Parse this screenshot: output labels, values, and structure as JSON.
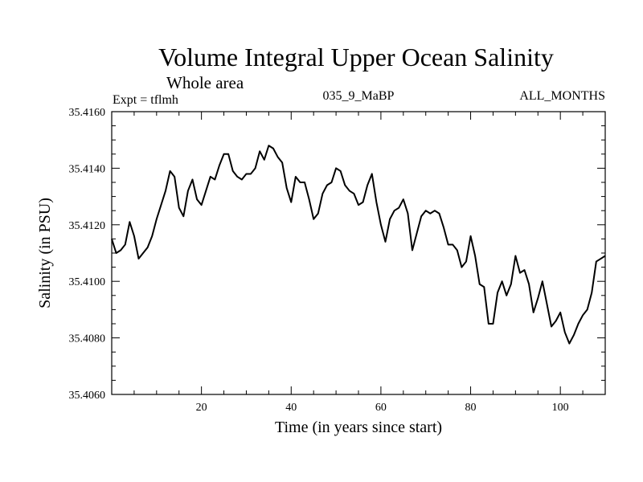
{
  "chart_data": {
    "type": "line",
    "title": "Volume Integral Upper Ocean Salinity",
    "subtitle": "Whole area",
    "annotations": {
      "left": "Expt = tflmh",
      "center": "035_9_MaBP",
      "right": "ALL_MONTHS"
    },
    "xlabel": "Time (in years since start)",
    "ylabel": "Salinity (in PSU)",
    "xlim": [
      0,
      110
    ],
    "ylim": [
      35.406,
      35.416
    ],
    "x_ticks": [
      20,
      40,
      60,
      80,
      100
    ],
    "x_tick_labels": [
      "20",
      "40",
      "60",
      "80",
      "100"
    ],
    "y_ticks": [
      35.406,
      35.408,
      35.41,
      35.412,
      35.414,
      35.416
    ],
    "y_tick_labels": [
      "35.4060",
      "35.4080",
      "35.4100",
      "35.4120",
      "35.4140",
      "35.4160"
    ],
    "grid": false,
    "series": [
      {
        "name": "salinity",
        "x": [
          0,
          1,
          2,
          3,
          4,
          5,
          6,
          7,
          8,
          9,
          10,
          11,
          12,
          13,
          14,
          15,
          16,
          17,
          18,
          19,
          20,
          21,
          22,
          23,
          24,
          25,
          26,
          27,
          28,
          29,
          30,
          31,
          32,
          33,
          34,
          35,
          36,
          37,
          38,
          39,
          40,
          41,
          42,
          43,
          44,
          45,
          46,
          47,
          48,
          49,
          50,
          51,
          52,
          53,
          54,
          55,
          56,
          57,
          58,
          59,
          60,
          61,
          62,
          63,
          64,
          65,
          66,
          67,
          68,
          69,
          70,
          71,
          72,
          73,
          74,
          75,
          76,
          77,
          78,
          79,
          80,
          81,
          82,
          83,
          84,
          85,
          86,
          87,
          88,
          89,
          90,
          91,
          92,
          93,
          94,
          95,
          96,
          97,
          98,
          99,
          100,
          101,
          102,
          103,
          104,
          105,
          106,
          107,
          108,
          109,
          110
        ],
        "values": [
          35.4115,
          35.411,
          35.4111,
          35.4113,
          35.4121,
          35.4116,
          35.4108,
          35.411,
          35.4112,
          35.4116,
          35.4122,
          35.4127,
          35.4132,
          35.4139,
          35.4137,
          35.4126,
          35.4123,
          35.4132,
          35.4136,
          35.4129,
          35.4127,
          35.4132,
          35.4137,
          35.4136,
          35.4141,
          35.4145,
          35.4145,
          35.4139,
          35.4137,
          35.4136,
          35.4138,
          35.4138,
          35.414,
          35.4146,
          35.4143,
          35.4148,
          35.4147,
          35.4144,
          35.4142,
          35.4133,
          35.4128,
          35.4137,
          35.4135,
          35.4135,
          35.4129,
          35.4122,
          35.4124,
          35.4131,
          35.4134,
          35.4135,
          35.414,
          35.4139,
          35.4134,
          35.4132,
          35.4131,
          35.4127,
          35.4128,
          35.4134,
          35.4138,
          35.4128,
          35.412,
          35.4114,
          35.4122,
          35.4125,
          35.4126,
          35.4129,
          35.4124,
          35.4111,
          35.4117,
          35.4123,
          35.4125,
          35.4124,
          35.4125,
          35.4124,
          35.4119,
          35.4113,
          35.4113,
          35.4111,
          35.4105,
          35.4107,
          35.4116,
          35.4109,
          35.4099,
          35.4098,
          35.4085,
          35.4085,
          35.4096,
          35.41,
          35.4095,
          35.4099,
          35.4109,
          35.4103,
          35.4104,
          35.4099,
          35.4089,
          35.4094,
          35.41,
          35.4092,
          35.4084,
          35.4086,
          35.4089,
          35.4082,
          35.4078,
          35.4081,
          35.4085,
          35.4088,
          35.409,
          35.4096,
          35.4107,
          35.4108,
          35.4109
        ]
      }
    ]
  }
}
